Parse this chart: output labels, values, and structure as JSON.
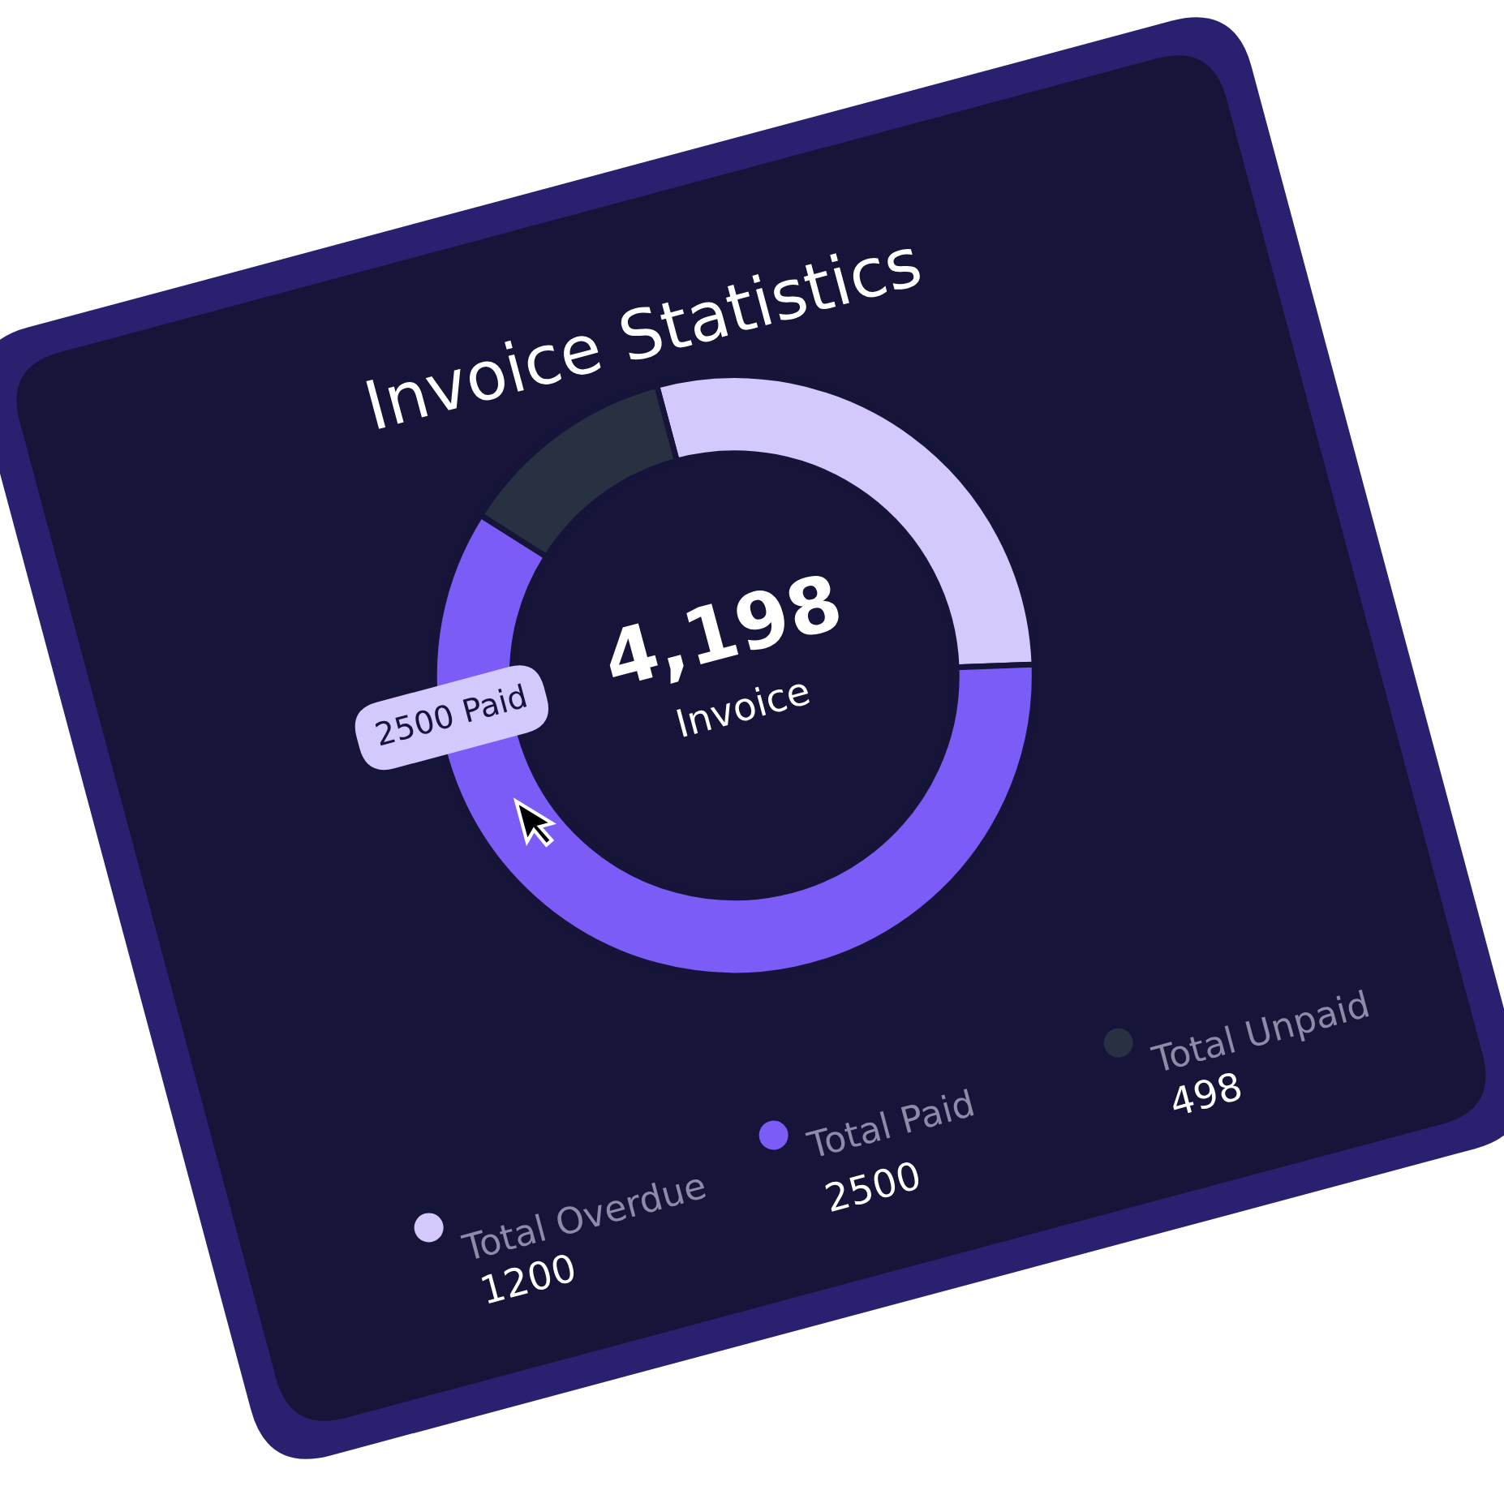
{
  "chart_data": {
    "type": "donut",
    "title": "Invoice Statistics",
    "categories": [
      "Total Overdue",
      "Total Paid",
      "Total Unpaid"
    ],
    "values": [
      1200,
      2500,
      498
    ],
    "colors": [
      "#d4c9fd",
      "#7b5cf6",
      "#283142"
    ],
    "data_labels": true,
    "legend": "bottom",
    "annotations": [
      "4,198",
      "Invoice",
      "2500 Paid"
    ]
  }
}
